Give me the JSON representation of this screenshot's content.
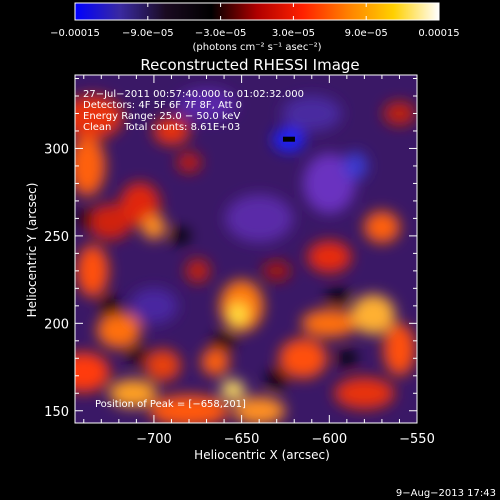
{
  "chart_data": {
    "type": "heatmap",
    "title": "Reconstructed RHESSI Image",
    "xlabel": "Heliocentric X (arcsec)",
    "ylabel": "Heliocentric Y (arcsec)",
    "xlim": [
      -745,
      -550
    ],
    "ylim": [
      143,
      342
    ],
    "x_ticks": [
      -700,
      -650,
      -600,
      -550
    ],
    "x_tick_labels": [
      "−700",
      "−650",
      "−600",
      "−550"
    ],
    "y_ticks": [
      150,
      200,
      250,
      300
    ],
    "y_tick_labels": [
      "150",
      "200",
      "250",
      "300"
    ],
    "colorbar": {
      "range": [
        -0.00015,
        0.00015
      ],
      "tick_labels": [
        "−0.00015",
        "−9.0e−05",
        "−3.0e−05",
        "3.0e−05",
        "9.0e−05",
        "0.00015"
      ],
      "tick_values": [
        -0.00015,
        -9e-05,
        -3e-05,
        3e-05,
        9e-05,
        0.00015
      ],
      "units": "(photons cm⁻² s⁻¹ asec⁻²)",
      "colors": [
        "#0000ff",
        "#3a2aa0",
        "#1a0a20",
        "#000000",
        "#b00000",
        "#ff2000",
        "#ff8000",
        "#ffd000",
        "#ffffff"
      ]
    },
    "annotations": {
      "time_range": "27−Jul−2011 00:57:40.000 to 01:02:32.000",
      "detectors": "Detectors: 4F 5F 6F 7F 8F, Att 0",
      "energy": "Energy Range: 25.0 − 50.0 keV",
      "clean": "Clean    Total counts: 8.61E+03",
      "peak": "Position of Peak = [−658,201]"
    },
    "peak_position": [
      -658,
      201
    ],
    "negative_peak_marker": [
      -623,
      305
    ]
  },
  "footer": {
    "date": "9−Aug−2013 17:43"
  }
}
